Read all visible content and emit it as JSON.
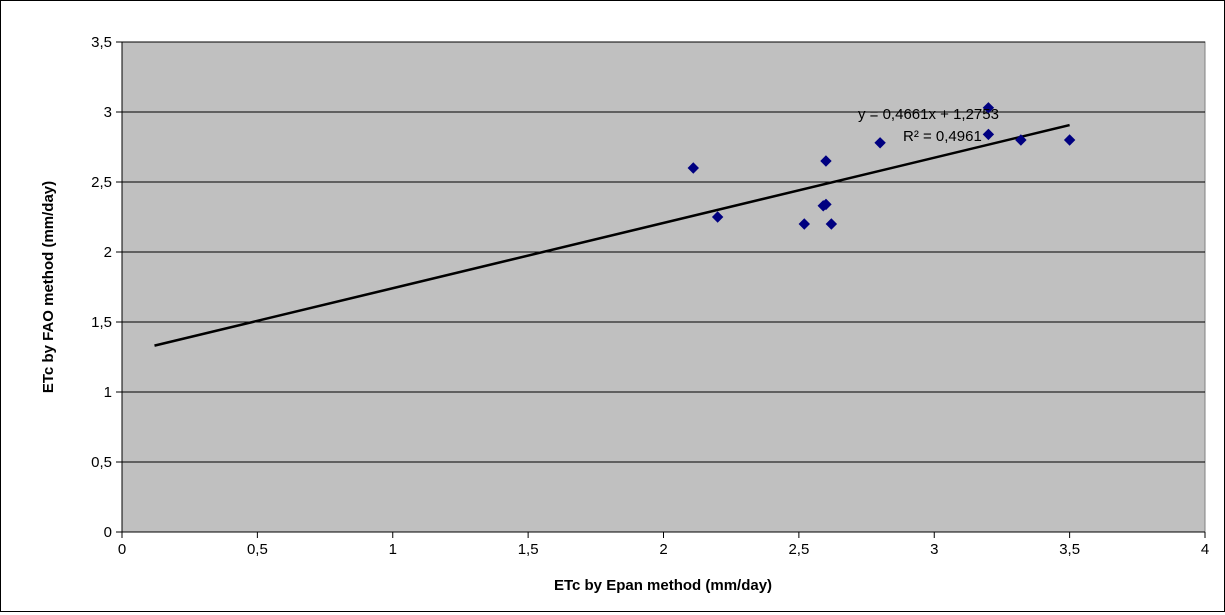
{
  "chart_data": {
    "type": "scatter",
    "xlabel": "ETc by Epan method (mm/day)",
    "ylabel": "ETc by FAO method (mm/day)",
    "xlim": [
      0,
      4
    ],
    "ylim": [
      0,
      3.5
    ],
    "x_ticks": [
      "0",
      "0,5",
      "1",
      "1,5",
      "2",
      "2,5",
      "3",
      "3,5",
      "4"
    ],
    "y_ticks": [
      "0",
      "0,5",
      "1",
      "1,5",
      "2",
      "2,5",
      "3",
      "3,5"
    ],
    "grid": "horizontal",
    "plot_background": "#c0c0c0",
    "marker_color": "#000080",
    "marker_shape": "diamond",
    "points": [
      {
        "x": 2.11,
        "y": 2.6
      },
      {
        "x": 2.2,
        "y": 2.25
      },
      {
        "x": 2.52,
        "y": 2.2
      },
      {
        "x": 2.59,
        "y": 2.33
      },
      {
        "x": 2.6,
        "y": 2.34
      },
      {
        "x": 2.6,
        "y": 2.65
      },
      {
        "x": 2.62,
        "y": 2.2
      },
      {
        "x": 2.8,
        "y": 2.78
      },
      {
        "x": 3.2,
        "y": 3.03
      },
      {
        "x": 3.2,
        "y": 2.84
      },
      {
        "x": 3.32,
        "y": 2.8
      },
      {
        "x": 3.5,
        "y": 2.8
      }
    ],
    "trendline": {
      "slope": 0.4661,
      "intercept": 1.2753,
      "x_start": 0.12,
      "x_end": 3.5,
      "color": "#000000",
      "equation_label": "y = 0,4661x + 1,2753",
      "r2_label": "R² = 0,4961"
    }
  }
}
